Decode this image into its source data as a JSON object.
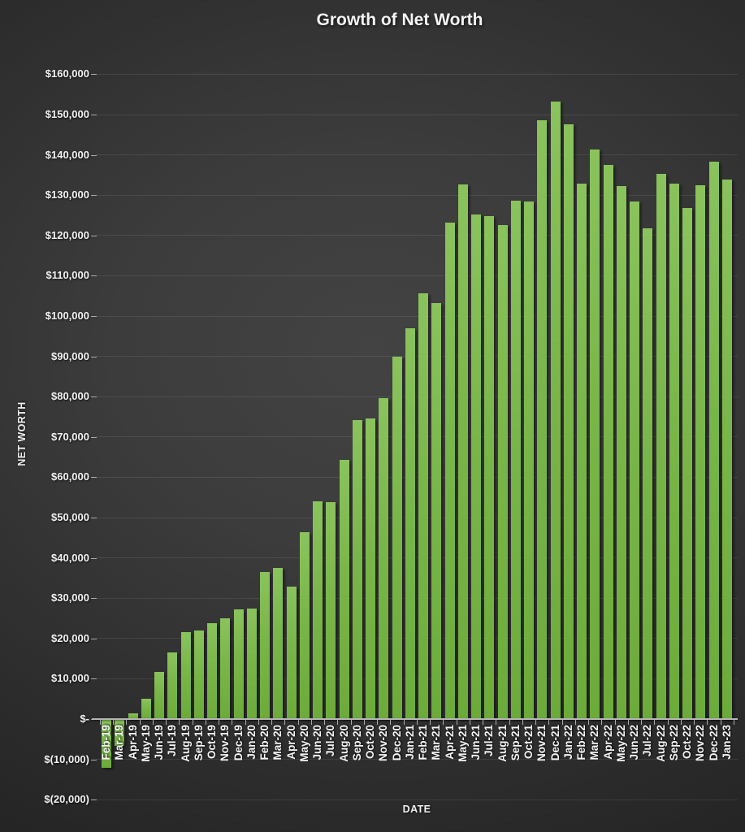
{
  "chart_data": {
    "type": "bar",
    "title": "Growth of Net Worth",
    "xlabel": "DATE",
    "ylabel": "NET WORTH",
    "legend": "none",
    "grid": true,
    "ylim": [
      -20000,
      160000
    ],
    "ytick_step": 10000,
    "bar_color": "#76b041",
    "categories": [
      "Feb-19",
      "Mar-19",
      "Apr-19",
      "May-19",
      "Jun-19",
      "Jul-19",
      "Aug-19",
      "Sep-19",
      "Oct-19",
      "Nov-19",
      "Dec-19",
      "Jan-20",
      "Feb-20",
      "Mar-20",
      "Apr-20",
      "May-20",
      "Jun-20",
      "Jul-20",
      "Aug-20",
      "Sep-20",
      "Oct-20",
      "Nov-20",
      "Dec-20",
      "Jan-21",
      "Feb-21",
      "Mar-21",
      "Apr-21",
      "May-21",
      "Jun-21",
      "Jul-21",
      "Aug-21",
      "Sep-21",
      "Oct-21",
      "Nov-21",
      "Dec-21",
      "Jan-22",
      "Feb-22",
      "Mar-22",
      "Apr-22",
      "May-22",
      "Jun-22",
      "Jul-22",
      "Aug-22",
      "Sep-22",
      "Oct-22",
      "Nov-22",
      "Dec-22",
      "Jan-23"
    ],
    "values": [
      -11800,
      -6500,
      1400,
      5100,
      11600,
      16500,
      21500,
      21900,
      23700,
      25100,
      27200,
      27400,
      36400,
      37500,
      32900,
      46300,
      54100,
      53800,
      64400,
      74200,
      74500,
      79600,
      89900,
      97000,
      105700,
      103200,
      123200,
      132700,
      125300,
      124700,
      122500,
      128700,
      128500,
      148500,
      153200,
      147600,
      132900,
      141300,
      137500,
      132200,
      128400,
      121800,
      135200,
      132900,
      126800,
      132400,
      138400,
      133900
    ],
    "y_ticks": [
      {
        "value": 160000,
        "label": "$160,000"
      },
      {
        "value": 150000,
        "label": "$150,000"
      },
      {
        "value": 140000,
        "label": "$140,000"
      },
      {
        "value": 130000,
        "label": "$130,000"
      },
      {
        "value": 120000,
        "label": "$120,000"
      },
      {
        "value": 110000,
        "label": "$110,000"
      },
      {
        "value": 100000,
        "label": "$100,000"
      },
      {
        "value": 90000,
        "label": "$90,000"
      },
      {
        "value": 80000,
        "label": "$80,000"
      },
      {
        "value": 70000,
        "label": "$70,000"
      },
      {
        "value": 60000,
        "label": "$60,000"
      },
      {
        "value": 50000,
        "label": "$50,000"
      },
      {
        "value": 40000,
        "label": "$40,000"
      },
      {
        "value": 30000,
        "label": "$30,000"
      },
      {
        "value": 20000,
        "label": "$20,000"
      },
      {
        "value": 10000,
        "label": "$10,000"
      },
      {
        "value": 0,
        "label": "$-"
      },
      {
        "value": -10000,
        "label": "$(10,000)"
      },
      {
        "value": -20000,
        "label": "$(20,000)"
      }
    ]
  }
}
